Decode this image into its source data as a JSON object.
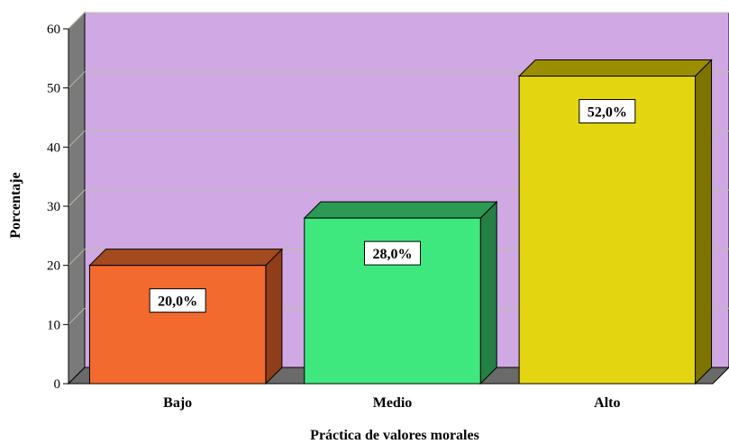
{
  "chart_data": {
    "type": "bar",
    "categories": [
      "Bajo",
      "Medio",
      "Alto"
    ],
    "values": [
      20,
      28,
      52
    ],
    "data_labels": [
      "20,0%",
      "28,0%",
      "52,0%"
    ],
    "xlabel": "Práctica de valores morales",
    "ylabel": "Porcentaje",
    "ylim": [
      0,
      60
    ],
    "yticks": [
      0,
      10,
      20,
      30,
      40,
      50,
      60
    ],
    "grid": true,
    "style": "3d",
    "colors": {
      "plot_background": "#cfa8e4",
      "floor": "#6a6a6a",
      "bars": [
        "#f26a2e",
        "#3fe87e",
        "#e3d510"
      ],
      "bar_tops": [
        "#a34a1e",
        "#2c9a55",
        "#9a8e00"
      ],
      "bar_sides": [
        "#8f3e19",
        "#237f45",
        "#7d7400"
      ]
    }
  }
}
